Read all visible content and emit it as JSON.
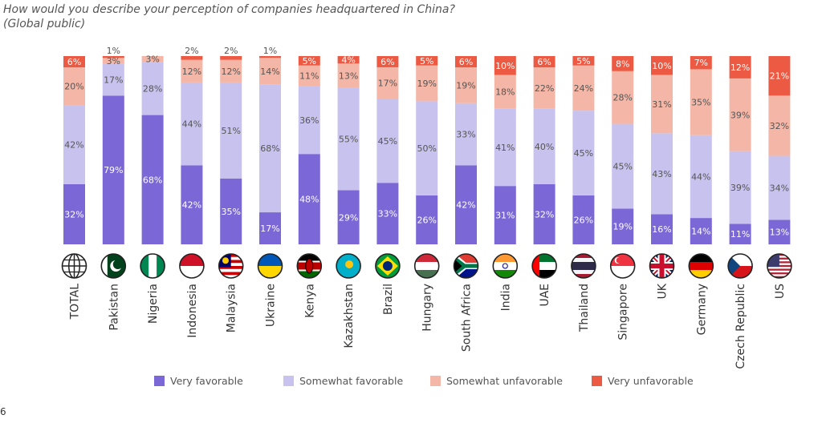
{
  "title_line1": "How would you describe your perception of companies headquartered in China?",
  "title_line2": "(Global public)",
  "stray_mark": "6",
  "colors": {
    "very_favorable": "#7B68D6",
    "somewhat_favorable": "#C8C2EE",
    "somewhat_unfavorable": "#F4B6A6",
    "very_unfavorable": "#EC5A43"
  },
  "chart_data": {
    "type": "bar",
    "stacked": true,
    "orientation": "vertical",
    "ylim": [
      0,
      100
    ],
    "grid": false,
    "legend_position": "bottom",
    "categories": [
      "TOTAL",
      "Pakistan",
      "Nigeria",
      "Indonesia",
      "Malaysia",
      "Ukraine",
      "Kenya",
      "Kazakhstan",
      "Brazil",
      "Hungary",
      "South Africa",
      "India",
      "UAE",
      "Thailand",
      "Singapore",
      "UK",
      "Germany",
      "Czech Republic",
      "US"
    ],
    "flags": [
      "globe-icon",
      "pakistan-flag-icon",
      "nigeria-flag-icon",
      "indonesia-flag-icon",
      "malaysia-flag-icon",
      "ukraine-flag-icon",
      "kenya-flag-icon",
      "kazakhstan-flag-icon",
      "brazil-flag-icon",
      "hungary-flag-icon",
      "south-africa-flag-icon",
      "india-flag-icon",
      "uae-flag-icon",
      "thailand-flag-icon",
      "singapore-flag-icon",
      "uk-flag-icon",
      "germany-flag-icon",
      "czech-republic-flag-icon",
      "us-flag-icon"
    ],
    "series": [
      {
        "name": "Very favorable",
        "values": [
          32,
          79,
          68,
          42,
          35,
          17,
          48,
          29,
          33,
          26,
          42,
          31,
          32,
          26,
          19,
          16,
          14,
          11,
          13
        ]
      },
      {
        "name": "Somewhat favorable",
        "values": [
          42,
          17,
          28,
          44,
          51,
          68,
          36,
          55,
          45,
          50,
          33,
          41,
          40,
          45,
          45,
          43,
          44,
          39,
          34
        ]
      },
      {
        "name": "Somewhat unfavorable",
        "values": [
          20,
          3,
          3,
          12,
          12,
          14,
          11,
          13,
          17,
          19,
          19,
          18,
          22,
          24,
          28,
          31,
          35,
          39,
          32
        ]
      },
      {
        "name": "Very unfavorable",
        "values": [
          6,
          1,
          0,
          2,
          2,
          1,
          5,
          4,
          6,
          5,
          6,
          10,
          6,
          5,
          8,
          10,
          7,
          12,
          21
        ]
      }
    ],
    "labels": [
      [
        "32%",
        "79%",
        "68%",
        "42%",
        "35%",
        "17%",
        "48%",
        "29%",
        "33%",
        "26%",
        "42%",
        "31%",
        "32%",
        "26%",
        "19%",
        "16%",
        "14%",
        "11%",
        "13%"
      ],
      [
        "42%",
        "17%",
        "28%",
        "44%",
        "51%",
        "68%",
        "36%",
        "55%",
        "45%",
        "50%",
        "33%",
        "41%",
        "40%",
        "45%",
        "45%",
        "43%",
        "44%",
        "39%",
        "34%"
      ],
      [
        "20%",
        "3%",
        "3%",
        "12%",
        "12%",
        "14%",
        "11%",
        "13%",
        "17%",
        "19%",
        "19%",
        "18%",
        "22%",
        "24%",
        "28%",
        "31%",
        "35%",
        "39%",
        "32%"
      ],
      [
        "6%",
        "1%",
        "",
        "2%",
        "2%",
        "1%",
        "5%",
        "4%",
        "6%",
        "5%",
        "6%",
        "10%",
        "6%",
        "5%",
        "8%",
        "10%",
        "7%",
        "12%",
        "21%"
      ]
    ]
  }
}
